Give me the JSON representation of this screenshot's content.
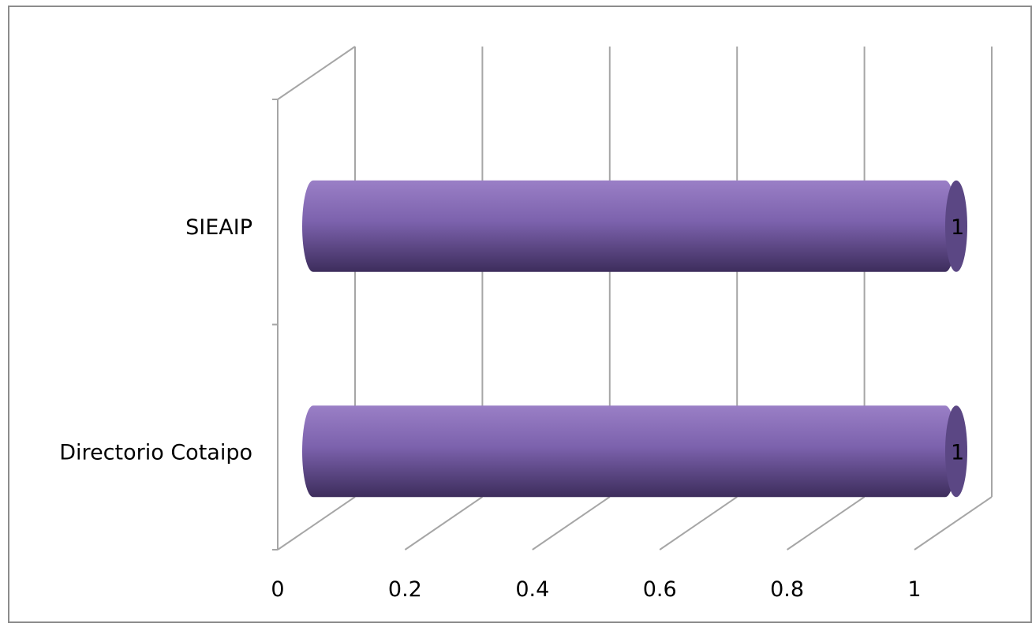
{
  "chart_data": {
    "type": "bar",
    "orientation": "horizontal",
    "style": "3d-cylinder",
    "categories": [
      "SIEAIP",
      "Directorio Cotaipo"
    ],
    "values": [
      1,
      1
    ],
    "data_labels": [
      "1",
      "1"
    ],
    "x_ticks": [
      "0",
      "0.2",
      "0.4",
      "0.6",
      "0.8",
      "1"
    ],
    "xlim": [
      0,
      1
    ],
    "grid": true,
    "legend": "none",
    "title": "",
    "xlabel": "",
    "ylabel": "",
    "colors": {
      "bar_light": "#9a7fc6",
      "bar_mid": "#7c62ad",
      "bar_dark": "#3d2d5c",
      "bar_cap": "#5b4784",
      "grid": "#a6a6a6",
      "frame": "#8c8c8c",
      "text": "#000000"
    }
  }
}
